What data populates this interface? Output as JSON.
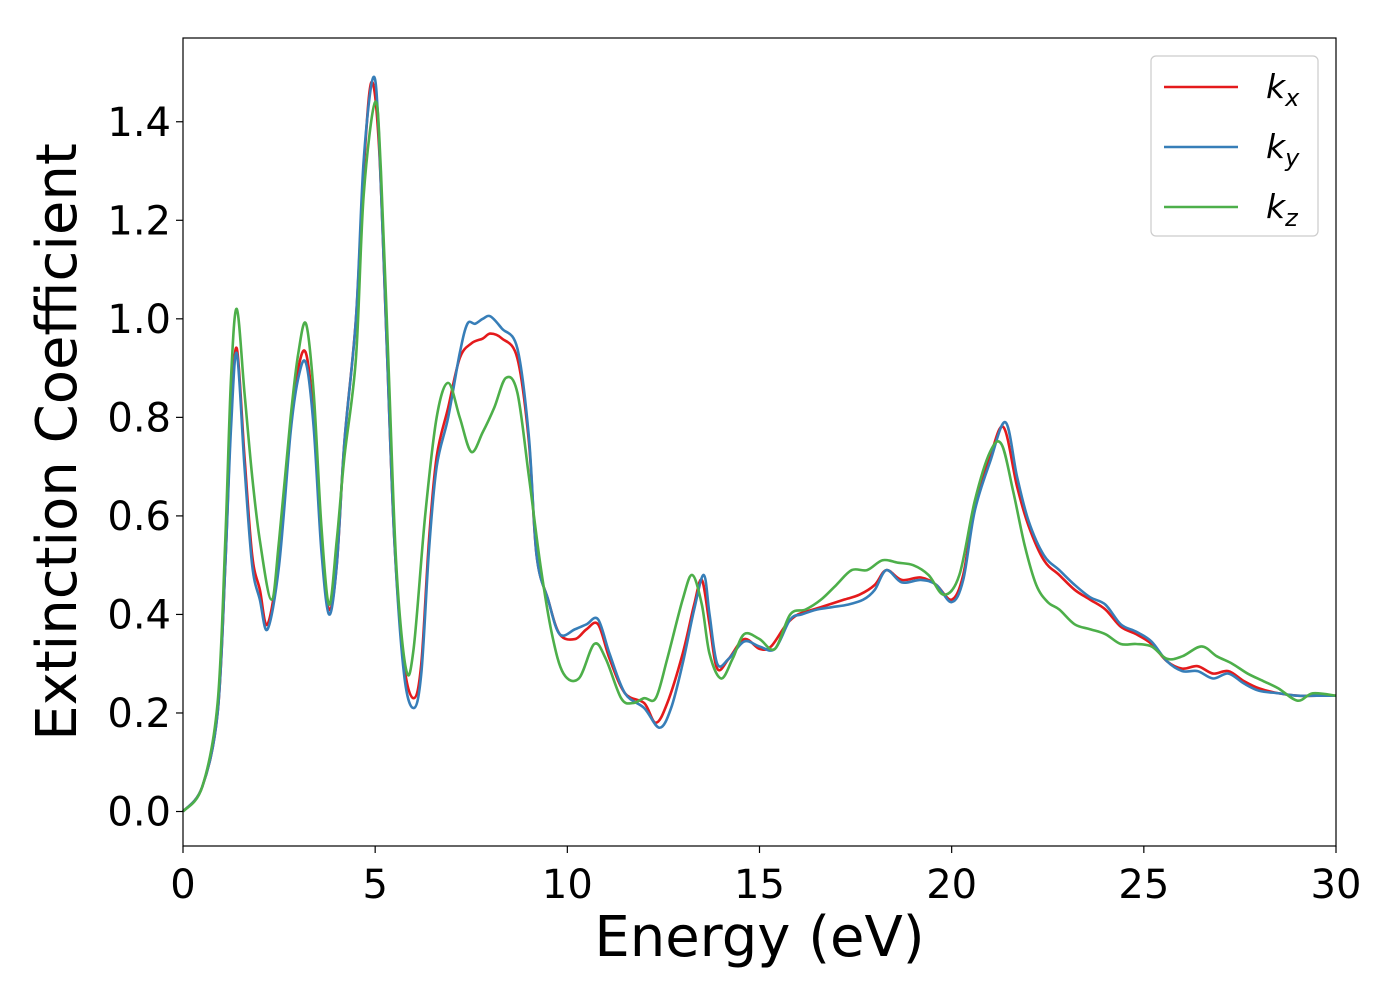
{
  "chart_data": {
    "type": "line",
    "title": "",
    "xlabel": "Energy (eV)",
    "ylabel": "Extinction Coefficient",
    "xlim": [
      0,
      30
    ],
    "ylim": [
      -0.07,
      1.57
    ],
    "xticks": [
      0,
      5,
      10,
      15,
      20,
      25,
      30
    ],
    "yticks": [
      "0.0",
      "0.2",
      "0.4",
      "0.6",
      "0.8",
      "1.0",
      "1.2",
      "1.4"
    ],
    "legend_position": "top-right",
    "grid": false,
    "series": [
      {
        "name": "k",
        "subscript": "x",
        "color": "#e41a1c",
        "points": [
          [
            0,
            0
          ],
          [
            0.5,
            0.05
          ],
          [
            0.9,
            0.2
          ],
          [
            1.1,
            0.5
          ],
          [
            1.25,
            0.8
          ],
          [
            1.4,
            0.94
          ],
          [
            1.6,
            0.72
          ],
          [
            1.8,
            0.52
          ],
          [
            2.0,
            0.45
          ],
          [
            2.2,
            0.38
          ],
          [
            2.5,
            0.52
          ],
          [
            2.8,
            0.78
          ],
          [
            3.0,
            0.9
          ],
          [
            3.2,
            0.93
          ],
          [
            3.4,
            0.8
          ],
          [
            3.6,
            0.55
          ],
          [
            3.8,
            0.41
          ],
          [
            4.0,
            0.5
          ],
          [
            4.2,
            0.75
          ],
          [
            4.5,
            1.0
          ],
          [
            4.7,
            1.3
          ],
          [
            4.9,
            1.48
          ],
          [
            5.1,
            1.35
          ],
          [
            5.3,
            0.95
          ],
          [
            5.5,
            0.55
          ],
          [
            5.75,
            0.3
          ],
          [
            6.0,
            0.23
          ],
          [
            6.2,
            0.3
          ],
          [
            6.4,
            0.55
          ],
          [
            6.6,
            0.72
          ],
          [
            6.9,
            0.82
          ],
          [
            7.2,
            0.92
          ],
          [
            7.5,
            0.95
          ],
          [
            7.8,
            0.96
          ],
          [
            8.0,
            0.97
          ],
          [
            8.3,
            0.96
          ],
          [
            8.7,
            0.92
          ],
          [
            9.0,
            0.75
          ],
          [
            9.2,
            0.52
          ],
          [
            9.5,
            0.43
          ],
          [
            9.8,
            0.36
          ],
          [
            10.2,
            0.35
          ],
          [
            10.5,
            0.37
          ],
          [
            10.8,
            0.38
          ],
          [
            11.1,
            0.31
          ],
          [
            11.5,
            0.24
          ],
          [
            12.0,
            0.22
          ],
          [
            12.3,
            0.18
          ],
          [
            12.6,
            0.22
          ],
          [
            13.0,
            0.32
          ],
          [
            13.3,
            0.42
          ],
          [
            13.5,
            0.47
          ],
          [
            13.7,
            0.38
          ],
          [
            13.9,
            0.29
          ],
          [
            14.2,
            0.31
          ],
          [
            14.6,
            0.35
          ],
          [
            15.0,
            0.33
          ],
          [
            15.3,
            0.335
          ],
          [
            15.7,
            0.38
          ],
          [
            16.0,
            0.4
          ],
          [
            16.4,
            0.41
          ],
          [
            16.8,
            0.42
          ],
          [
            17.2,
            0.43
          ],
          [
            17.6,
            0.44
          ],
          [
            18.0,
            0.46
          ],
          [
            18.3,
            0.49
          ],
          [
            18.7,
            0.47
          ],
          [
            19.2,
            0.475
          ],
          [
            19.6,
            0.46
          ],
          [
            20.0,
            0.43
          ],
          [
            20.3,
            0.48
          ],
          [
            20.6,
            0.62
          ],
          [
            21.0,
            0.72
          ],
          [
            21.35,
            0.78
          ],
          [
            21.7,
            0.66
          ],
          [
            22.0,
            0.58
          ],
          [
            22.4,
            0.51
          ],
          [
            22.8,
            0.48
          ],
          [
            23.2,
            0.45
          ],
          [
            23.6,
            0.43
          ],
          [
            24.0,
            0.41
          ],
          [
            24.4,
            0.375
          ],
          [
            24.8,
            0.36
          ],
          [
            25.2,
            0.34
          ],
          [
            25.6,
            0.305
          ],
          [
            26.0,
            0.29
          ],
          [
            26.4,
            0.295
          ],
          [
            26.8,
            0.28
          ],
          [
            27.2,
            0.285
          ],
          [
            27.6,
            0.265
          ],
          [
            28.0,
            0.25
          ],
          [
            28.5,
            0.24
          ],
          [
            29.0,
            0.235
          ],
          [
            29.5,
            0.235
          ],
          [
            30.0,
            0.235
          ]
        ]
      },
      {
        "name": "k",
        "subscript": "y",
        "color": "#377eb8",
        "points": [
          [
            0,
            0
          ],
          [
            0.5,
            0.05
          ],
          [
            0.9,
            0.2
          ],
          [
            1.1,
            0.5
          ],
          [
            1.25,
            0.78
          ],
          [
            1.4,
            0.93
          ],
          [
            1.6,
            0.7
          ],
          [
            1.8,
            0.5
          ],
          [
            2.0,
            0.43
          ],
          [
            2.2,
            0.37
          ],
          [
            2.5,
            0.5
          ],
          [
            2.8,
            0.77
          ],
          [
            3.0,
            0.88
          ],
          [
            3.2,
            0.91
          ],
          [
            3.4,
            0.78
          ],
          [
            3.6,
            0.53
          ],
          [
            3.8,
            0.4
          ],
          [
            4.0,
            0.5
          ],
          [
            4.2,
            0.75
          ],
          [
            4.5,
            1.0
          ],
          [
            4.7,
            1.32
          ],
          [
            4.95,
            1.49
          ],
          [
            5.1,
            1.37
          ],
          [
            5.3,
            0.95
          ],
          [
            5.5,
            0.55
          ],
          [
            5.75,
            0.28
          ],
          [
            6.0,
            0.21
          ],
          [
            6.2,
            0.28
          ],
          [
            6.4,
            0.53
          ],
          [
            6.6,
            0.7
          ],
          [
            6.9,
            0.8
          ],
          [
            7.2,
            0.93
          ],
          [
            7.4,
            0.99
          ],
          [
            7.6,
            0.99
          ],
          [
            7.8,
            1.0
          ],
          [
            8.0,
            1.005
          ],
          [
            8.3,
            0.98
          ],
          [
            8.7,
            0.94
          ],
          [
            9.0,
            0.76
          ],
          [
            9.2,
            0.52
          ],
          [
            9.5,
            0.43
          ],
          [
            9.8,
            0.36
          ],
          [
            10.2,
            0.37
          ],
          [
            10.5,
            0.38
          ],
          [
            10.8,
            0.39
          ],
          [
            11.1,
            0.32
          ],
          [
            11.5,
            0.24
          ],
          [
            12.0,
            0.21
          ],
          [
            12.4,
            0.17
          ],
          [
            12.7,
            0.21
          ],
          [
            13.0,
            0.3
          ],
          [
            13.3,
            0.41
          ],
          [
            13.55,
            0.48
          ],
          [
            13.7,
            0.4
          ],
          [
            13.9,
            0.3
          ],
          [
            14.2,
            0.31
          ],
          [
            14.6,
            0.345
          ],
          [
            15.0,
            0.335
          ],
          [
            15.4,
            0.33
          ],
          [
            15.8,
            0.39
          ],
          [
            16.1,
            0.4
          ],
          [
            16.5,
            0.41
          ],
          [
            16.9,
            0.415
          ],
          [
            17.3,
            0.42
          ],
          [
            17.7,
            0.43
          ],
          [
            18.0,
            0.45
          ],
          [
            18.3,
            0.49
          ],
          [
            18.7,
            0.465
          ],
          [
            19.2,
            0.47
          ],
          [
            19.6,
            0.46
          ],
          [
            20.0,
            0.425
          ],
          [
            20.3,
            0.47
          ],
          [
            20.6,
            0.61
          ],
          [
            21.0,
            0.71
          ],
          [
            21.4,
            0.79
          ],
          [
            21.7,
            0.68
          ],
          [
            22.0,
            0.59
          ],
          [
            22.4,
            0.52
          ],
          [
            22.8,
            0.49
          ],
          [
            23.2,
            0.46
          ],
          [
            23.6,
            0.435
          ],
          [
            24.0,
            0.42
          ],
          [
            24.4,
            0.38
          ],
          [
            24.8,
            0.365
          ],
          [
            25.2,
            0.345
          ],
          [
            25.6,
            0.305
          ],
          [
            26.0,
            0.285
          ],
          [
            26.4,
            0.285
          ],
          [
            26.8,
            0.27
          ],
          [
            27.2,
            0.28
          ],
          [
            27.6,
            0.26
          ],
          [
            28.0,
            0.245
          ],
          [
            28.5,
            0.24
          ],
          [
            29.0,
            0.235
          ],
          [
            29.5,
            0.235
          ],
          [
            30.0,
            0.235
          ]
        ]
      },
      {
        "name": "k",
        "subscript": "z",
        "color": "#4daf4a",
        "points": [
          [
            0,
            0
          ],
          [
            0.5,
            0.05
          ],
          [
            0.9,
            0.22
          ],
          [
            1.1,
            0.55
          ],
          [
            1.25,
            0.88
          ],
          [
            1.4,
            1.02
          ],
          [
            1.6,
            0.85
          ],
          [
            1.8,
            0.68
          ],
          [
            2.0,
            0.55
          ],
          [
            2.3,
            0.43
          ],
          [
            2.5,
            0.55
          ],
          [
            2.8,
            0.8
          ],
          [
            3.0,
            0.93
          ],
          [
            3.2,
            0.99
          ],
          [
            3.4,
            0.85
          ],
          [
            3.6,
            0.58
          ],
          [
            3.8,
            0.42
          ],
          [
            4.0,
            0.55
          ],
          [
            4.2,
            0.72
          ],
          [
            4.5,
            0.92
          ],
          [
            4.7,
            1.25
          ],
          [
            5.0,
            1.44
          ],
          [
            5.15,
            1.3
          ],
          [
            5.35,
            0.9
          ],
          [
            5.55,
            0.5
          ],
          [
            5.8,
            0.29
          ],
          [
            6.0,
            0.33
          ],
          [
            6.3,
            0.6
          ],
          [
            6.6,
            0.8
          ],
          [
            6.9,
            0.87
          ],
          [
            7.2,
            0.8
          ],
          [
            7.5,
            0.73
          ],
          [
            7.8,
            0.77
          ],
          [
            8.1,
            0.82
          ],
          [
            8.4,
            0.88
          ],
          [
            8.7,
            0.85
          ],
          [
            9.0,
            0.68
          ],
          [
            9.3,
            0.5
          ],
          [
            9.6,
            0.36
          ],
          [
            9.9,
            0.28
          ],
          [
            10.3,
            0.27
          ],
          [
            10.7,
            0.34
          ],
          [
            11.0,
            0.31
          ],
          [
            11.4,
            0.23
          ],
          [
            11.7,
            0.22
          ],
          [
            12.0,
            0.23
          ],
          [
            12.3,
            0.23
          ],
          [
            12.6,
            0.31
          ],
          [
            13.0,
            0.43
          ],
          [
            13.25,
            0.48
          ],
          [
            13.5,
            0.42
          ],
          [
            13.7,
            0.32
          ],
          [
            14.0,
            0.27
          ],
          [
            14.3,
            0.31
          ],
          [
            14.6,
            0.36
          ],
          [
            15.0,
            0.35
          ],
          [
            15.4,
            0.33
          ],
          [
            15.8,
            0.4
          ],
          [
            16.2,
            0.41
          ],
          [
            16.6,
            0.43
          ],
          [
            17.0,
            0.46
          ],
          [
            17.4,
            0.49
          ],
          [
            17.8,
            0.49
          ],
          [
            18.2,
            0.51
          ],
          [
            18.6,
            0.505
          ],
          [
            19.0,
            0.5
          ],
          [
            19.4,
            0.48
          ],
          [
            19.8,
            0.44
          ],
          [
            20.2,
            0.48
          ],
          [
            20.6,
            0.63
          ],
          [
            21.0,
            0.73
          ],
          [
            21.3,
            0.745
          ],
          [
            21.6,
            0.65
          ],
          [
            21.9,
            0.54
          ],
          [
            22.2,
            0.46
          ],
          [
            22.5,
            0.425
          ],
          [
            22.8,
            0.41
          ],
          [
            23.2,
            0.38
          ],
          [
            23.6,
            0.37
          ],
          [
            24.0,
            0.36
          ],
          [
            24.4,
            0.34
          ],
          [
            24.8,
            0.34
          ],
          [
            25.2,
            0.335
          ],
          [
            25.6,
            0.31
          ],
          [
            26.0,
            0.315
          ],
          [
            26.5,
            0.335
          ],
          [
            26.9,
            0.315
          ],
          [
            27.3,
            0.3
          ],
          [
            27.7,
            0.28
          ],
          [
            28.1,
            0.265
          ],
          [
            28.5,
            0.25
          ],
          [
            29.0,
            0.225
          ],
          [
            29.4,
            0.24
          ],
          [
            30.0,
            0.235
          ]
        ]
      }
    ]
  }
}
